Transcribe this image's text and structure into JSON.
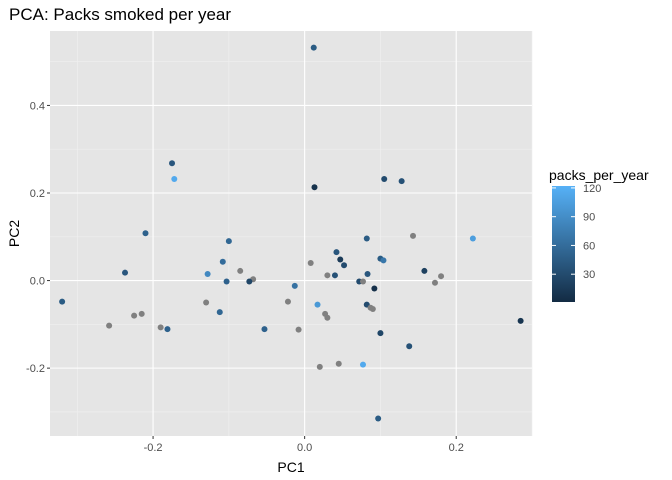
{
  "chart_data": {
    "type": "scatter",
    "title": "PCA: Packs smoked per year",
    "xlabel": "PC1",
    "ylabel": "PC2",
    "xlim": [
      -0.336,
      0.3
    ],
    "ylim": [
      -0.355,
      0.57
    ],
    "x_ticks": [
      -0.2,
      0.0,
      0.2
    ],
    "x_tick_labels": [
      "-0.2",
      "0.0",
      "0.2"
    ],
    "y_ticks": [
      -0.2,
      0.0,
      0.2,
      0.4
    ],
    "y_tick_labels": [
      "-0.2",
      "0.0",
      "0.2",
      "0.4"
    ],
    "grid": true,
    "panel_background": "#e5e5e5",
    "grid_major_color": "#ffffff",
    "grid_minor_color": "#f0f0f0",
    "na_color": "#808080",
    "legend": {
      "title": "packs_per_year",
      "placement": "right",
      "type": "colorbar",
      "breaks": [
        30,
        60,
        90,
        120
      ],
      "break_labels": [
        "30",
        "60",
        "90",
        "120"
      ],
      "range": [
        1,
        122
      ],
      "low_color": "#132b43",
      "high_color": "#56b1f7"
    },
    "points": [
      {
        "x": 0.012,
        "y": 0.532,
        "v": 45
      },
      {
        "x": -0.175,
        "y": 0.268,
        "v": 40
      },
      {
        "x": -0.172,
        "y": 0.232,
        "v": 115
      },
      {
        "x": 0.013,
        "y": 0.213,
        "v": 8
      },
      {
        "x": 0.105,
        "y": 0.232,
        "v": 30
      },
      {
        "x": 0.128,
        "y": 0.227,
        "v": 35
      },
      {
        "x": -0.21,
        "y": 0.108,
        "v": 50
      },
      {
        "x": 0.222,
        "y": 0.096,
        "v": 105
      },
      {
        "x": -0.1,
        "y": 0.09,
        "v": 55
      },
      {
        "x": 0.082,
        "y": 0.096,
        "v": 45
      },
      {
        "x": 0.143,
        "y": 0.102,
        "v": null
      },
      {
        "x": -0.085,
        "y": 0.022,
        "v": null
      },
      {
        "x": -0.108,
        "y": 0.043,
        "v": 60
      },
      {
        "x": 0.042,
        "y": 0.065,
        "v": 40
      },
      {
        "x": 0.047,
        "y": 0.048,
        "v": 15
      },
      {
        "x": 0.052,
        "y": 0.035,
        "v": 30
      },
      {
        "x": 0.1,
        "y": 0.05,
        "v": 45
      },
      {
        "x": 0.104,
        "y": 0.046,
        "v": 70
      },
      {
        "x": 0.008,
        "y": 0.04,
        "v": null
      },
      {
        "x": -0.237,
        "y": 0.018,
        "v": 40
      },
      {
        "x": -0.128,
        "y": 0.015,
        "v": 85
      },
      {
        "x": 0.158,
        "y": 0.022,
        "v": 20
      },
      {
        "x": 0.18,
        "y": 0.01,
        "v": null
      },
      {
        "x": 0.083,
        "y": 0.015,
        "v": 40
      },
      {
        "x": 0.03,
        "y": 0.012,
        "v": null
      },
      {
        "x": 0.04,
        "y": 0.012,
        "v": 35
      },
      {
        "x": -0.068,
        "y": 0.003,
        "v": null
      },
      {
        "x": -0.103,
        "y": -0.002,
        "v": 50
      },
      {
        "x": -0.073,
        "y": -0.002,
        "v": 25
      },
      {
        "x": 0.072,
        "y": -0.002,
        "v": 30
      },
      {
        "x": 0.077,
        "y": -0.002,
        "v": null
      },
      {
        "x": 0.172,
        "y": -0.005,
        "v": null
      },
      {
        "x": -0.013,
        "y": -0.012,
        "v": 65
      },
      {
        "x": 0.092,
        "y": -0.018,
        "v": 5
      },
      {
        "x": -0.32,
        "y": -0.048,
        "v": 45
      },
      {
        "x": -0.13,
        "y": -0.05,
        "v": null
      },
      {
        "x": -0.022,
        "y": -0.048,
        "v": null
      },
      {
        "x": -0.008,
        "y": -0.112,
        "v": null
      },
      {
        "x": 0.017,
        "y": -0.055,
        "v": 100
      },
      {
        "x": 0.082,
        "y": -0.055,
        "v": 30
      },
      {
        "x": 0.087,
        "y": -0.062,
        "v": null
      },
      {
        "x": 0.09,
        "y": -0.065,
        "v": null
      },
      {
        "x": -0.112,
        "y": -0.072,
        "v": 55
      },
      {
        "x": -0.215,
        "y": -0.076,
        "v": null
      },
      {
        "x": -0.225,
        "y": -0.08,
        "v": null
      },
      {
        "x": 0.027,
        "y": -0.076,
        "v": null
      },
      {
        "x": 0.03,
        "y": -0.085,
        "v": null
      },
      {
        "x": 0.285,
        "y": -0.092,
        "v": 10
      },
      {
        "x": -0.258,
        "y": -0.103,
        "v": null
      },
      {
        "x": -0.19,
        "y": -0.107,
        "v": null
      },
      {
        "x": -0.181,
        "y": -0.111,
        "v": 50
      },
      {
        "x": -0.053,
        "y": -0.111,
        "v": 50
      },
      {
        "x": 0.1,
        "y": -0.12,
        "v": 25
      },
      {
        "x": 0.138,
        "y": -0.15,
        "v": 35
      },
      {
        "x": 0.045,
        "y": -0.19,
        "v": null
      },
      {
        "x": 0.077,
        "y": -0.192,
        "v": 115
      },
      {
        "x": 0.02,
        "y": -0.197,
        "v": null
      },
      {
        "x": 0.097,
        "y": -0.315,
        "v": 45
      }
    ]
  }
}
